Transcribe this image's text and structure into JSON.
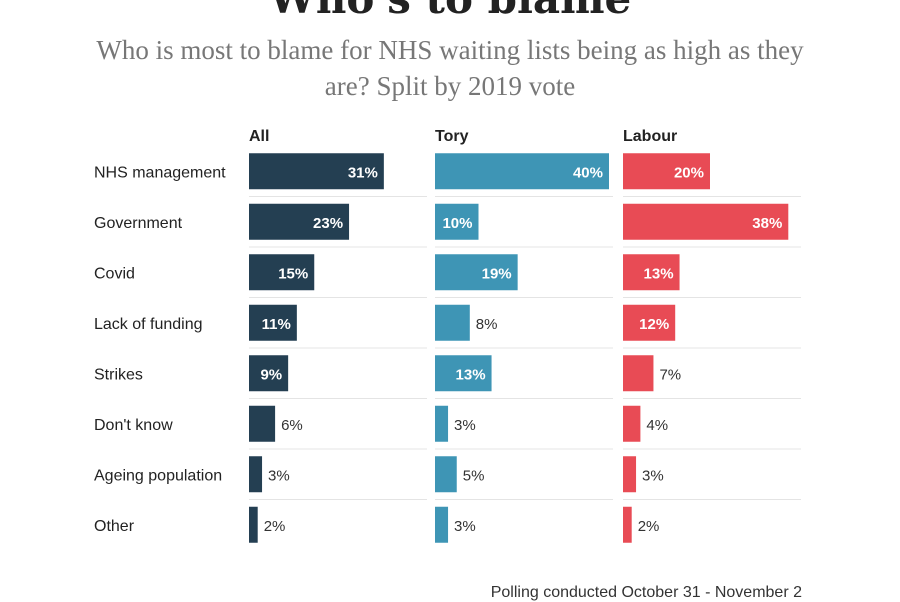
{
  "chart_data": {
    "type": "bar",
    "orientation": "horizontal",
    "title": "Who's to blame",
    "subtitle": "Who is most to blame for NHS waiting lists being as high as they are? Split by 2019 vote",
    "categories": [
      "NHS management",
      "Government",
      "Covid",
      "Lack of funding",
      "Strikes",
      "Don't know",
      "Ageing population",
      "Other"
    ],
    "series": [
      {
        "name": "All",
        "color": "#243f52",
        "values": [
          31,
          23,
          15,
          11,
          9,
          6,
          3,
          2
        ],
        "labels": [
          "31%",
          "23%",
          "15%",
          "11%",
          "9%",
          "6%",
          "3%",
          "2%"
        ]
      },
      {
        "name": "Tory",
        "color": "#3e95b5",
        "values": [
          40,
          10,
          19,
          8,
          13,
          3,
          5,
          3
        ],
        "labels": [
          "40%",
          "10%",
          "19%",
          "8%",
          "13%",
          "3%",
          "5%",
          "3%"
        ]
      },
      {
        "name": "Labour",
        "color": "#e84b55",
        "values": [
          20,
          38,
          13,
          12,
          7,
          4,
          3,
          2
        ],
        "labels": [
          "20%",
          "38%",
          "13%",
          "12%",
          "7%",
          "4%",
          "3%",
          "2%"
        ]
      }
    ],
    "xlim": [
      0,
      40
    ],
    "footnote": "Polling conducted October 31 - November 2"
  }
}
